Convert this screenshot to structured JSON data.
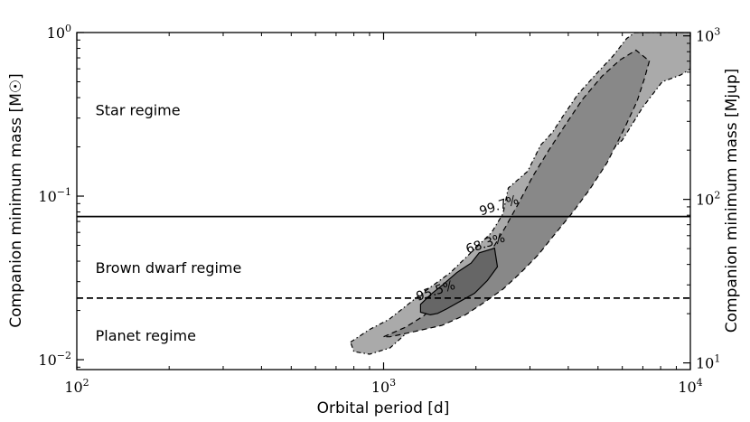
{
  "chart_data": {
    "type": "contour",
    "xlabel": "Orbital period [d]",
    "ylabel": "Companion minimum mass [M☉]",
    "y2label": "Companion minimum mass [Mjup]",
    "xscale": "log",
    "yscale": "log",
    "y2scale": "log",
    "xlim": [
      100,
      10000
    ],
    "ylim": [
      0.0087,
      1
    ],
    "y2lim": [
      9.1,
      1048
    ],
    "x_ticks": [
      {
        "value": 100,
        "base": "10",
        "exp": "2"
      },
      {
        "value": 1000,
        "base": "10",
        "exp": "3"
      },
      {
        "value": 10000,
        "base": "10",
        "exp": "4"
      }
    ],
    "y_ticks": [
      {
        "value": 0.01,
        "base": "10",
        "exp": "−2"
      },
      {
        "value": 0.1,
        "base": "10",
        "exp": "−1"
      },
      {
        "value": 1,
        "base": "10",
        "exp": "0"
      }
    ],
    "y2_ticks": [
      {
        "value": 10,
        "base": "10",
        "exp": "1"
      },
      {
        "value": 100,
        "base": "10",
        "exp": "2"
      },
      {
        "value": 1000,
        "base": "10",
        "exp": "3"
      }
    ],
    "hlines": [
      {
        "y": 0.075,
        "style": "solid"
      },
      {
        "y": 0.0238,
        "style": "dashed"
      }
    ],
    "regions": [
      {
        "label": "Star regime",
        "x": 115,
        "y": 0.33
      },
      {
        "label": "Brown dwarf regime",
        "x": 115,
        "y": 0.036
      },
      {
        "label": "Planet regime",
        "x": 115,
        "y": 0.0138
      }
    ],
    "contours": [
      {
        "label": "99.7%",
        "color": "#aaaaaa",
        "line": "dashdot",
        "label_x": 2380,
        "label_y": 0.087,
        "points": [
          [
            780,
            0.0128
          ],
          [
            900,
            0.0153
          ],
          [
            1040,
            0.0176
          ],
          [
            1300,
            0.0245
          ],
          [
            1650,
            0.034
          ],
          [
            1900,
            0.044
          ],
          [
            2250,
            0.06
          ],
          [
            2450,
            0.078
          ],
          [
            2550,
            0.112
          ],
          [
            2950,
            0.142
          ],
          [
            3250,
            0.205
          ],
          [
            3550,
            0.245
          ],
          [
            3850,
            0.31
          ],
          [
            4300,
            0.42
          ],
          [
            4900,
            0.55
          ],
          [
            5600,
            0.72
          ],
          [
            6200,
            0.92
          ],
          [
            6600,
            1.0
          ],
          [
            10000,
            1.0
          ],
          [
            10000,
            0.6
          ],
          [
            9300,
            0.55
          ],
          [
            8100,
            0.5
          ],
          [
            7000,
            0.35
          ],
          [
            6000,
            0.22
          ],
          [
            5000,
            0.16
          ],
          [
            4200,
            0.1
          ],
          [
            3700,
            0.075
          ],
          [
            3200,
            0.055
          ],
          [
            2800,
            0.04
          ],
          [
            2400,
            0.029
          ],
          [
            2000,
            0.023
          ],
          [
            1650,
            0.019
          ],
          [
            1350,
            0.0165
          ],
          [
            1200,
            0.0148
          ],
          [
            1050,
            0.0118
          ],
          [
            900,
            0.0108
          ],
          [
            800,
            0.0112
          ]
        ]
      },
      {
        "label": "68.3%",
        "color": "#888888",
        "line": "dashed",
        "label_x": 2150,
        "label_y": 0.051,
        "points": [
          [
            1000,
            0.0138
          ],
          [
            1180,
            0.0158
          ],
          [
            1350,
            0.0185
          ],
          [
            1600,
            0.0245
          ],
          [
            1850,
            0.031
          ],
          [
            2050,
            0.0385
          ],
          [
            2300,
            0.05
          ],
          [
            2500,
            0.065
          ],
          [
            2750,
            0.09
          ],
          [
            3050,
            0.13
          ],
          [
            3450,
            0.19
          ],
          [
            3900,
            0.27
          ],
          [
            4450,
            0.39
          ],
          [
            5150,
            0.54
          ],
          [
            5900,
            0.68
          ],
          [
            6650,
            0.78
          ],
          [
            7350,
            0.67
          ],
          [
            7100,
            0.53
          ],
          [
            6700,
            0.38
          ],
          [
            6100,
            0.26
          ],
          [
            5350,
            0.16
          ],
          [
            4700,
            0.11
          ],
          [
            4100,
            0.078
          ],
          [
            3600,
            0.058
          ],
          [
            3200,
            0.044
          ],
          [
            2800,
            0.034
          ],
          [
            2450,
            0.027
          ],
          [
            2120,
            0.0223
          ],
          [
            1850,
            0.0188
          ],
          [
            1550,
            0.0162
          ],
          [
            1250,
            0.0148
          ],
          [
            1050,
            0.0138
          ]
        ]
      },
      {
        "label": "95.5%",
        "color": "#666666",
        "line": "solid",
        "label_x": 1480,
        "label_y": 0.0262,
        "points": [
          [
            1320,
            0.0195
          ],
          [
            1320,
            0.0218
          ],
          [
            1430,
            0.0252
          ],
          [
            1570,
            0.029
          ],
          [
            1730,
            0.034
          ],
          [
            1930,
            0.039
          ],
          [
            2050,
            0.045
          ],
          [
            2300,
            0.048
          ],
          [
            2350,
            0.037
          ],
          [
            2180,
            0.0305
          ],
          [
            1980,
            0.0255
          ],
          [
            1780,
            0.0228
          ],
          [
            1610,
            0.0205
          ],
          [
            1500,
            0.0192
          ],
          [
            1420,
            0.0188
          ]
        ]
      }
    ]
  }
}
